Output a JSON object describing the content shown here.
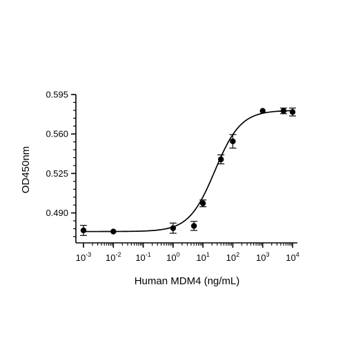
{
  "chart_data": {
    "type": "scatter",
    "xlabel": "Human MDM4 (ng/mL)",
    "ylabel": "OD450nm",
    "x_scale": "log10",
    "xlim": [
      0.001,
      10000
    ],
    "ylim": [
      0.4665,
      0.595
    ],
    "x_ticks": [
      {
        "base": "10",
        "exp": "-3"
      },
      {
        "base": "10",
        "exp": "-2"
      },
      {
        "base": "10",
        "exp": "-1"
      },
      {
        "base": "10",
        "exp": "0"
      },
      {
        "base": "10",
        "exp": "1"
      },
      {
        "base": "10",
        "exp": "2"
      },
      {
        "base": "10",
        "exp": "3"
      },
      {
        "base": "10",
        "exp": "4"
      }
    ],
    "y_ticks": [
      "0.490",
      "0.525",
      "0.560",
      "0.595"
    ],
    "y_tick_values": [
      0.49,
      0.525,
      0.56,
      0.595
    ],
    "grid": false,
    "legend": "none",
    "points": [
      {
        "x": 0.001,
        "y": 0.4745,
        "err": 0.0045
      },
      {
        "x": 0.01,
        "y": 0.4735,
        "err": 0.0
      },
      {
        "x": 1,
        "y": 0.4765,
        "err": 0.0045
      },
      {
        "x": 5,
        "y": 0.4785,
        "err": 0.004
      },
      {
        "x": 10,
        "y": 0.4985,
        "err": 0.003
      },
      {
        "x": 40,
        "y": 0.5375,
        "err": 0.004
      },
      {
        "x": 100,
        "y": 0.5535,
        "err": 0.006
      },
      {
        "x": 1000,
        "y": 0.5805,
        "err": 0.0
      },
      {
        "x": 5000,
        "y": 0.5805,
        "err": 0.0025
      },
      {
        "x": 10000,
        "y": 0.5795,
        "err": 0.0035
      }
    ],
    "fit_curve": {
      "model": "4PL",
      "bottom": 0.4735,
      "top": 0.581,
      "ec50": 25,
      "hill": 1.0
    },
    "colors": {
      "points": "#000000",
      "curve": "#000000",
      "axes": "#000000"
    }
  }
}
